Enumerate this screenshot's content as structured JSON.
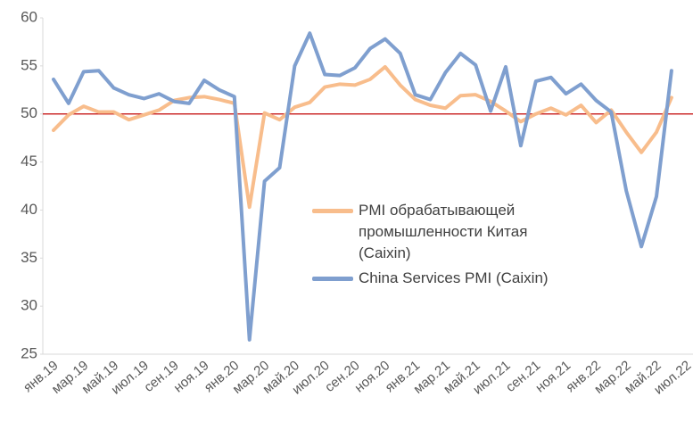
{
  "chart_data": {
    "type": "line",
    "categories": [
      "янв.19",
      null,
      "мар.19",
      null,
      "май.19",
      null,
      "июл.19",
      null,
      "сен.19",
      null,
      "ноя.19",
      null,
      "янв.20",
      null,
      "мар.20",
      null,
      "май.20",
      null,
      "июл.20",
      null,
      "сен.20",
      null,
      "ноя.20",
      null,
      "янв.21",
      null,
      "мар.21",
      null,
      "май.21",
      null,
      "июл.21",
      null,
      "сен.21",
      null,
      "ноя.21",
      null,
      "янв.22",
      null,
      "мар.22",
      null,
      "май.22",
      null,
      "июл.22"
    ],
    "series": [
      {
        "name": "PMI обрабатывающей промышленности Китая (Caixin)",
        "color": "#f8bd8c",
        "values": [
          48.3,
          49.9,
          50.8,
          50.2,
          50.2,
          49.4,
          49.9,
          50.4,
          51.4,
          51.7,
          51.8,
          51.5,
          51.1,
          40.3,
          50.1,
          49.4,
          50.7,
          51.2,
          52.8,
          53.1,
          53.0,
          53.6,
          54.9,
          53.0,
          51.5,
          50.9,
          50.6,
          51.9,
          52.0,
          51.3,
          50.3,
          49.2,
          50.0,
          50.6,
          49.9,
          50.9,
          49.1,
          50.4,
          48.1,
          46.0,
          48.1,
          51.7,
          null
        ]
      },
      {
        "name": "China Services PMI (Caixin)",
        "color": "#7f9fcf",
        "values": [
          53.6,
          51.1,
          54.4,
          54.5,
          52.7,
          52.0,
          51.6,
          52.1,
          51.3,
          51.1,
          53.5,
          52.5,
          51.8,
          26.5,
          43.0,
          44.4,
          55.0,
          58.4,
          54.1,
          54.0,
          54.8,
          56.8,
          57.8,
          56.3,
          52.0,
          51.5,
          54.3,
          56.3,
          55.1,
          50.3,
          54.9,
          46.7,
          53.4,
          53.8,
          52.1,
          53.1,
          51.4,
          50.2,
          42.0,
          36.2,
          41.4,
          54.5,
          null
        ]
      }
    ],
    "ylim": [
      25,
      60
    ],
    "yticks": [
      25,
      30,
      35,
      40,
      45,
      50,
      55,
      60
    ],
    "hline": {
      "value": 50,
      "color": "#c00000"
    }
  }
}
